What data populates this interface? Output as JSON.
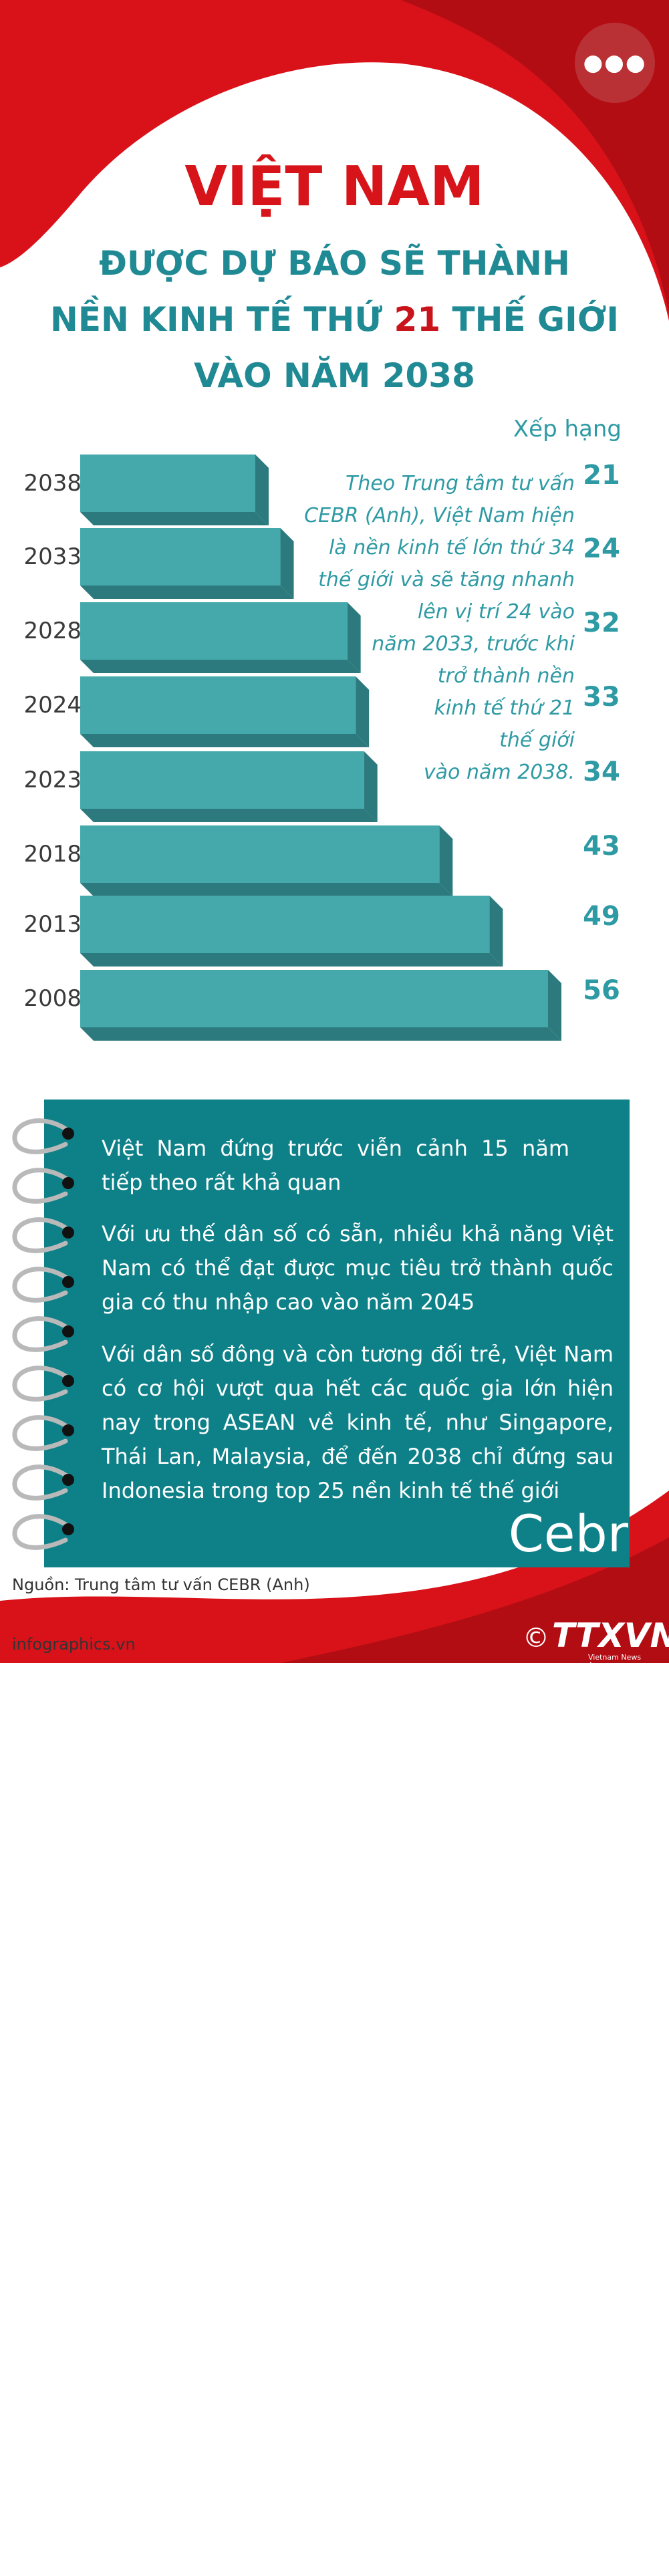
{
  "header": {
    "more_icon": "more-horizontal-icon",
    "title_line1": "VIỆT NAM",
    "title_line2": "ĐƯỢC DỰ BÁO SẼ THÀNH",
    "title_line3_pre": "NỀN KINH TẾ THỨ ",
    "title_line3_hl": "21",
    "title_line3_post": " THẾ GIỚI",
    "title_line4": "VÀO NĂM 2038"
  },
  "chart_data": {
    "type": "bar",
    "orientation": "horizontal",
    "value_header": "Xếp hạng",
    "categories": [
      "2038",
      "2033",
      "2028",
      "2024",
      "2023",
      "2018",
      "2013",
      "2008"
    ],
    "values": [
      21,
      24,
      32,
      33,
      34,
      43,
      49,
      56
    ],
    "value_labels": [
      "21",
      "24",
      "32",
      "33",
      "34",
      "43",
      "49",
      "56"
    ],
    "bar_color": "#45a9ac",
    "bar_shadow_color": "#2c7a7d"
  },
  "quote": {
    "lines": [
      "Theo Trung tâm tư vấn",
      "CEBR (Anh), Việt Nam hiện",
      "là nền kinh tế lớn thứ 34",
      "thế giới và sẽ tăng nhanh",
      "lên vị trí 24 vào",
      "năm 2033, trước khi",
      "trở thành nền",
      "kinh tế thứ 21",
      "thế giới",
      "vào năm 2038."
    ]
  },
  "info": {
    "bullets": [
      "Việt Nam đứng trước viễn cảnh 15 năm tiếp theo rất khả quan",
      "Với ưu thế dân số có sẵn, nhiều khả năng Việt Nam có thể đạt được mục tiêu trở thành quốc gia có thu nhập cao vào năm 2045",
      "Với dân số đông và còn tương đối trẻ, Việt Nam có cơ hội vượt qua hết các quốc gia lớn hiện nay trong ASEAN về kinh tế, như Singapore, Thái Lan, Malaysia, để đến 2038 chỉ đứng sau Indonesia trong top 25 nền kinh tế thế giới"
    ],
    "watermark": "Cebr",
    "logo": "Cebr",
    "ring_icon": "notebook-ring-icon"
  },
  "footer": {
    "source": "Nguồn: Trung tâm tư vấn CEBR (Anh)",
    "site": "infographics.vn",
    "copyright": "©",
    "brand": "TTXVN",
    "brand_sub": "Vietnam News Agency"
  },
  "colors": {
    "accent_red": "#d7141a",
    "teal": "#1f8a94",
    "panel": "#0e8088"
  }
}
